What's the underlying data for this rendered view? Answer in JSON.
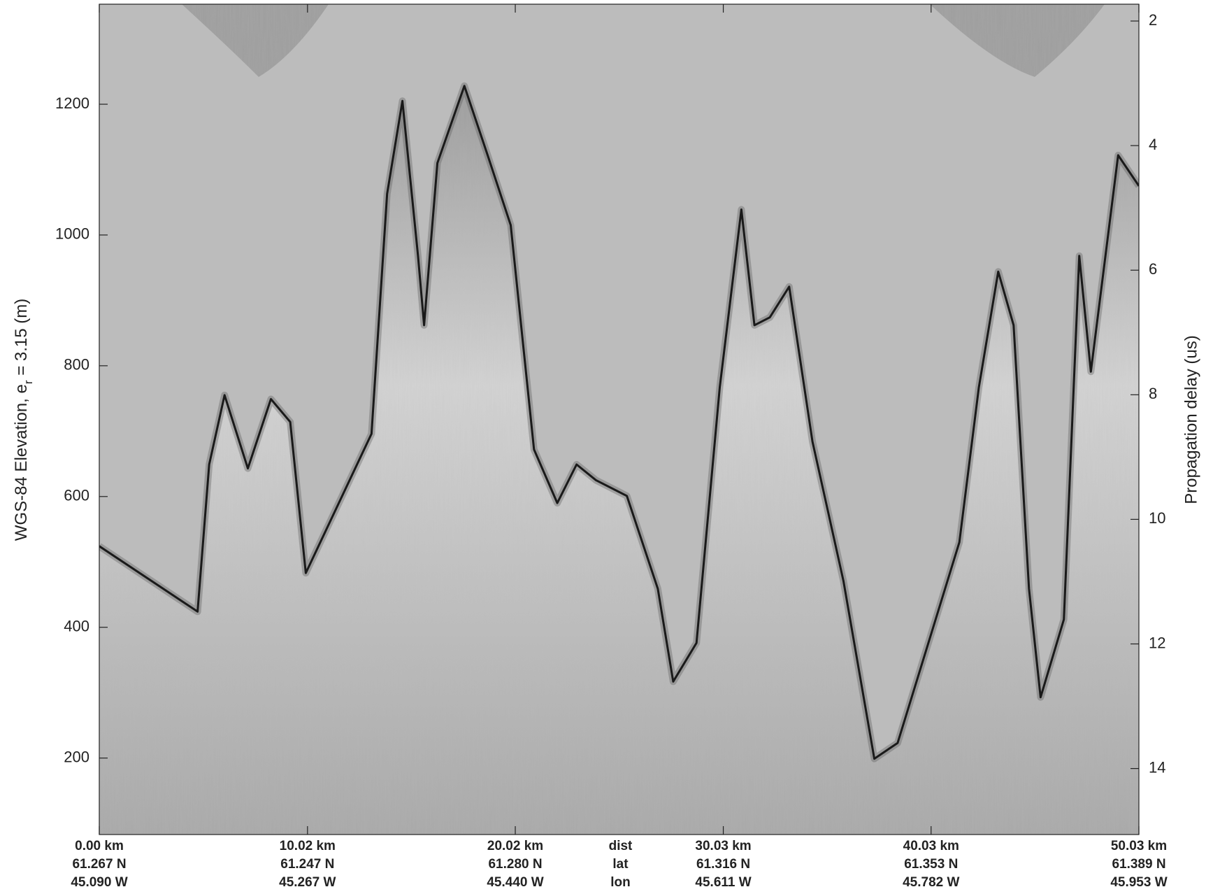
{
  "chart_data": {
    "type": "echogram",
    "ylabel": [
      "WGS-84 Elevation, e",
      "r",
      " = 3.15 (m)"
    ],
    "y2label": "Propagation delay (us)",
    "xlim": [
      0,
      50.03
    ],
    "ylim": [
      83,
      1353
    ],
    "yticks": [
      200,
      400,
      600,
      800,
      1000,
      1200
    ],
    "y2lim": [
      15.06,
      1.73
    ],
    "y2ticks": [
      2,
      4,
      6,
      8,
      10,
      12,
      14
    ],
    "xticks": [
      {
        "value": 0,
        "label": "0.00 km"
      },
      {
        "value": 10.02,
        "label": "10.02 km"
      },
      {
        "value": 20.02,
        "label": "20.02 km"
      },
      {
        "value": 30.03,
        "label": "30.03 km"
      },
      {
        "value": 40.03,
        "label": "40.03 km"
      },
      {
        "value": 50.03,
        "label": "50.03 km"
      }
    ],
    "lat": [
      "61.267 N",
      "61.247 N",
      "61.280 N",
      "61.316 N",
      "61.353 N",
      "61.389 N"
    ],
    "lon": [
      "45.090 W",
      "45.267 W",
      "45.440 W",
      "45.611 W",
      "45.782 W",
      "45.953 W"
    ],
    "row_labels": [
      "dist",
      "lat",
      "lon"
    ],
    "trace": {
      "x": [
        0,
        4.73,
        5.29,
        6.03,
        7.15,
        8.26,
        9.19,
        9.94,
        13.1,
        13.85,
        14.59,
        15.34,
        15.63,
        16.27,
        17.57,
        18.69,
        19.8,
        20.92,
        22.04,
        22.97,
        23.9,
        25.39,
        26.88,
        27.62,
        28.74,
        29.86,
        30.9,
        31.53,
        32.27,
        33.2,
        34.32,
        35.81,
        37.3,
        38.42,
        41.39,
        42.33,
        43.26,
        44.0,
        44.74,
        45.3,
        46.42,
        47.16,
        47.72,
        49.03,
        50.03
      ],
      "y": [
        524,
        424,
        649,
        755,
        643,
        749,
        714,
        483,
        696,
        1063,
        1205,
        968,
        862,
        1110,
        1228,
        1122,
        1015,
        672,
        590,
        649,
        625,
        601,
        459,
        317,
        376,
        767,
        1039,
        862,
        874,
        921,
        684,
        471,
        199,
        223,
        530,
        767,
        944,
        862,
        459,
        293,
        412,
        968,
        791,
        1122,
        1075
      ]
    },
    "color": "#1a1a1a"
  }
}
